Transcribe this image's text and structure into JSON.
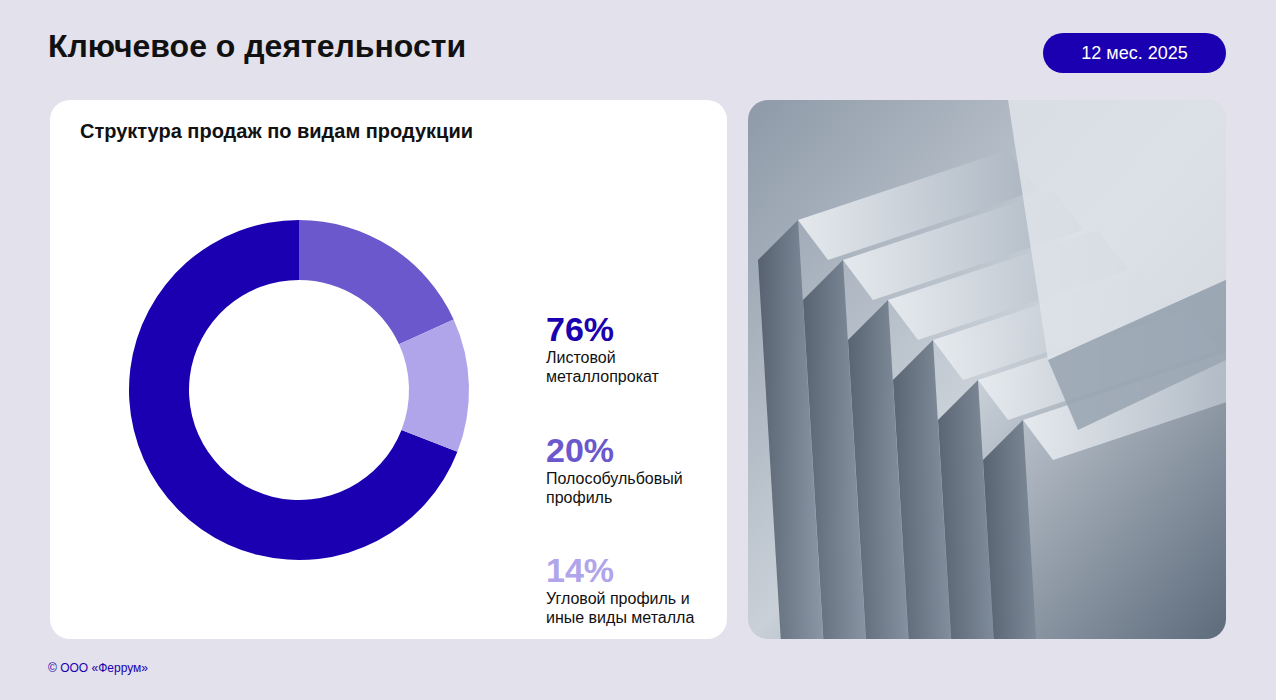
{
  "header": {
    "title": "Ключевое о деятельности",
    "period": "12 мес. 2025"
  },
  "chart_data": {
    "type": "pie",
    "title": "Структура продаж по видам продукции",
    "categories": [
      "Листовой металлопрокат",
      "Полособульбовый профиль",
      "Угловой профиль и иные виды металла"
    ],
    "values": [
      76,
      20,
      14
    ],
    "value_labels": [
      "76%",
      "20%",
      "14%"
    ],
    "colors": [
      "#1a00b0",
      "#6a58cc",
      "#b0a4ea"
    ]
  },
  "footer": "© ООО «Феррум»"
}
